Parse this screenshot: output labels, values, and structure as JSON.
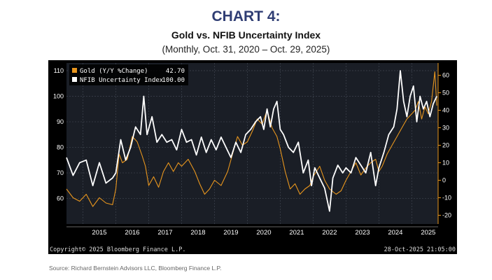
{
  "header": {
    "chart_number": "CHART 4:",
    "title": "Gold vs. NFIB Uncertainty Index",
    "subtitle": "(Monthly, Oct. 31, 2020 – Oct. 29, 2025)"
  },
  "source": "Source: Richard Bernstein Advisors LLC, Bloomberg Finance L.P.",
  "chart_data": {
    "type": "line",
    "left_axis": {
      "ticks": [
        60,
        70,
        80,
        90,
        100,
        110
      ],
      "range": [
        50,
        113
      ]
    },
    "right_axis": {
      "ticks": [
        -20,
        -10,
        0,
        10,
        20,
        30,
        40,
        50,
        60
      ],
      "range": [
        -25,
        67
      ]
    },
    "x_axis": {
      "range": [
        2014.5,
        2025.8
      ],
      "ticks": [
        "2015",
        "2016",
        "2017",
        "2018",
        "2019",
        "2020",
        "2021",
        "2022",
        "2023",
        "2024",
        "2025"
      ]
    },
    "grid": true,
    "legend_position": "top-left",
    "series": [
      {
        "name": "Gold (Y/Y %Change)",
        "last_value": "42.70",
        "axis": "right",
        "color": "#e8961e",
        "points": [
          [
            2014.5,
            -5
          ],
          [
            2014.7,
            -10
          ],
          [
            2014.9,
            -12
          ],
          [
            2015.1,
            -8
          ],
          [
            2015.3,
            -15
          ],
          [
            2015.5,
            -10
          ],
          [
            2015.7,
            -13
          ],
          [
            2015.9,
            -14
          ],
          [
            2016.0,
            -5
          ],
          [
            2016.1,
            15
          ],
          [
            2016.2,
            10
          ],
          [
            2016.35,
            12
          ],
          [
            2016.5,
            25
          ],
          [
            2016.65,
            22
          ],
          [
            2016.8,
            14
          ],
          [
            2016.9,
            8
          ],
          [
            2017.0,
            -3
          ],
          [
            2017.15,
            2
          ],
          [
            2017.3,
            -4
          ],
          [
            2017.45,
            5
          ],
          [
            2017.6,
            10
          ],
          [
            2017.75,
            5
          ],
          [
            2017.9,
            10
          ],
          [
            2018.0,
            8
          ],
          [
            2018.2,
            12
          ],
          [
            2018.4,
            5
          ],
          [
            2018.55,
            -2
          ],
          [
            2018.7,
            -8
          ],
          [
            2018.85,
            -5
          ],
          [
            2019.0,
            0
          ],
          [
            2019.2,
            -3
          ],
          [
            2019.4,
            5
          ],
          [
            2019.55,
            15
          ],
          [
            2019.7,
            25
          ],
          [
            2019.85,
            20
          ],
          [
            2020.0,
            22
          ],
          [
            2020.15,
            28
          ],
          [
            2020.3,
            35
          ],
          [
            2020.45,
            32
          ],
          [
            2020.6,
            40
          ],
          [
            2020.75,
            30
          ],
          [
            2020.9,
            25
          ],
          [
            2021.0,
            18
          ],
          [
            2021.15,
            5
          ],
          [
            2021.3,
            -5
          ],
          [
            2021.45,
            -2
          ],
          [
            2021.6,
            -8
          ],
          [
            2021.75,
            -5
          ],
          [
            2021.9,
            -3
          ],
          [
            2022.0,
            2
          ],
          [
            2022.2,
            8
          ],
          [
            2022.35,
            0
          ],
          [
            2022.5,
            -5
          ],
          [
            2022.7,
            -8
          ],
          [
            2022.85,
            -6
          ],
          [
            2023.0,
            0
          ],
          [
            2023.15,
            5
          ],
          [
            2023.3,
            10
          ],
          [
            2023.45,
            3
          ],
          [
            2023.6,
            7
          ],
          [
            2023.75,
            10
          ],
          [
            2023.9,
            12
          ],
          [
            2024.0,
            5
          ],
          [
            2024.1,
            8
          ],
          [
            2024.25,
            15
          ],
          [
            2024.4,
            20
          ],
          [
            2024.55,
            25
          ],
          [
            2024.7,
            30
          ],
          [
            2024.85,
            35
          ],
          [
            2025.0,
            38
          ],
          [
            2025.1,
            40
          ],
          [
            2025.2,
            45
          ],
          [
            2025.3,
            35
          ],
          [
            2025.4,
            42
          ],
          [
            2025.5,
            38
          ],
          [
            2025.6,
            45
          ],
          [
            2025.7,
            62
          ],
          [
            2025.76,
            42.7
          ]
        ]
      },
      {
        "name": "NFIB Uncertainty Index",
        "last_value": "100.00",
        "axis": "left",
        "color": "#ffffff",
        "points": [
          [
            2014.5,
            76
          ],
          [
            2014.7,
            69
          ],
          [
            2014.9,
            74
          ],
          [
            2015.1,
            75
          ],
          [
            2015.3,
            65
          ],
          [
            2015.5,
            74
          ],
          [
            2015.7,
            66
          ],
          [
            2015.9,
            68
          ],
          [
            2016.0,
            70
          ],
          [
            2016.15,
            83
          ],
          [
            2016.3,
            75
          ],
          [
            2016.45,
            80
          ],
          [
            2016.6,
            88
          ],
          [
            2016.75,
            85
          ],
          [
            2016.85,
            100
          ],
          [
            2016.95,
            85
          ],
          [
            2017.1,
            92
          ],
          [
            2017.25,
            82
          ],
          [
            2017.4,
            85
          ],
          [
            2017.55,
            82
          ],
          [
            2017.7,
            83
          ],
          [
            2017.85,
            79
          ],
          [
            2018.0,
            87
          ],
          [
            2018.15,
            82
          ],
          [
            2018.3,
            83
          ],
          [
            2018.45,
            77
          ],
          [
            2018.6,
            84
          ],
          [
            2018.75,
            78
          ],
          [
            2018.9,
            83
          ],
          [
            2019.05,
            79
          ],
          [
            2019.2,
            84
          ],
          [
            2019.35,
            80
          ],
          [
            2019.5,
            76
          ],
          [
            2019.65,
            82
          ],
          [
            2019.8,
            78
          ],
          [
            2019.95,
            85
          ],
          [
            2020.1,
            87
          ],
          [
            2020.25,
            90
          ],
          [
            2020.4,
            92
          ],
          [
            2020.5,
            87
          ],
          [
            2020.6,
            95
          ],
          [
            2020.7,
            88
          ],
          [
            2020.8,
            95
          ],
          [
            2020.9,
            98
          ],
          [
            2021.0,
            87
          ],
          [
            2021.1,
            85
          ],
          [
            2021.25,
            80
          ],
          [
            2021.4,
            78
          ],
          [
            2021.55,
            82
          ],
          [
            2021.7,
            70
          ],
          [
            2021.85,
            75
          ],
          [
            2021.95,
            65
          ],
          [
            2022.05,
            72
          ],
          [
            2022.2,
            68
          ],
          [
            2022.35,
            64
          ],
          [
            2022.5,
            55
          ],
          [
            2022.6,
            68
          ],
          [
            2022.75,
            73
          ],
          [
            2022.9,
            70
          ],
          [
            2023.0,
            72
          ],
          [
            2023.15,
            70
          ],
          [
            2023.3,
            76
          ],
          [
            2023.45,
            73
          ],
          [
            2023.6,
            70
          ],
          [
            2023.75,
            78
          ],
          [
            2023.9,
            65
          ],
          [
            2024.0,
            72
          ],
          [
            2024.15,
            78
          ],
          [
            2024.3,
            85
          ],
          [
            2024.45,
            88
          ],
          [
            2024.55,
            95
          ],
          [
            2024.65,
            110
          ],
          [
            2024.75,
            98
          ],
          [
            2024.85,
            92
          ],
          [
            2024.95,
            100
          ],
          [
            2025.05,
            104
          ],
          [
            2025.15,
            90
          ],
          [
            2025.25,
            100
          ],
          [
            2025.35,
            95
          ],
          [
            2025.45,
            98
          ],
          [
            2025.55,
            92
          ],
          [
            2025.65,
            97
          ],
          [
            2025.76,
            100
          ]
        ]
      }
    ],
    "copyright": "Copyright© 2025 Bloomberg Finance L.P.",
    "timestamp": "28-Oct-2025 21:05:00"
  }
}
